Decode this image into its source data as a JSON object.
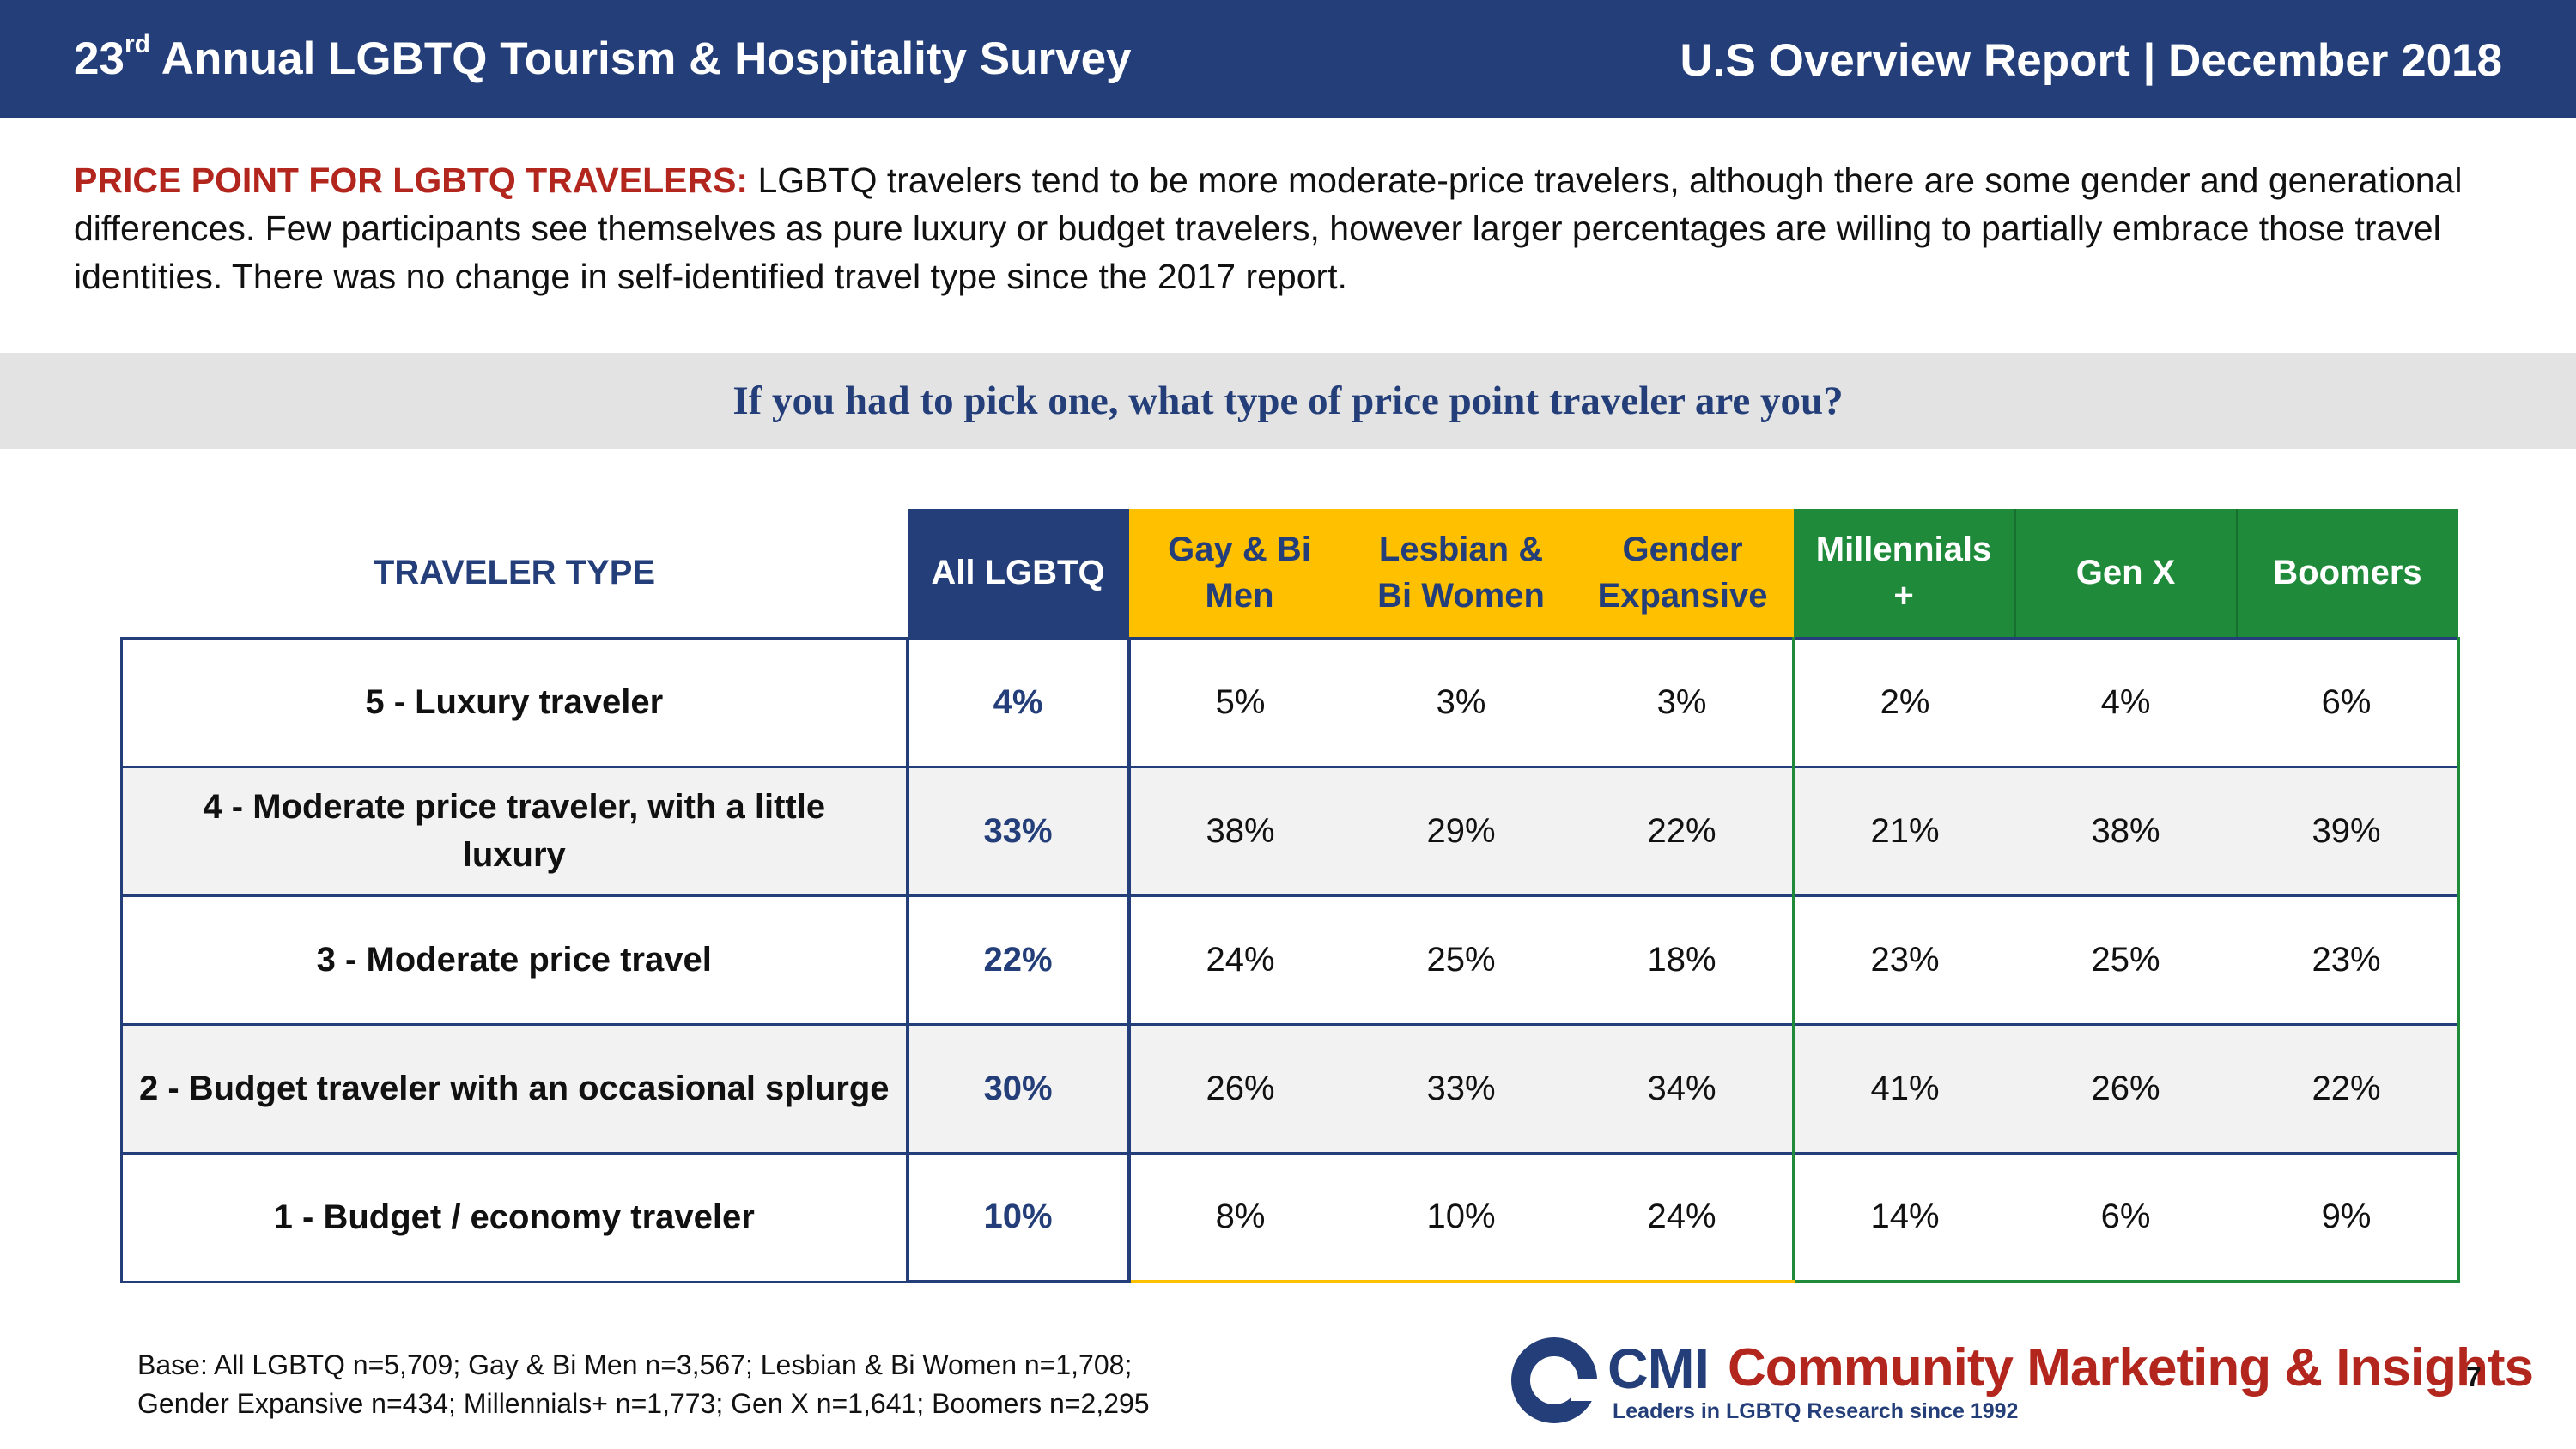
{
  "header": {
    "title_prefix": "23",
    "title_sup": "rd",
    "title_rest": " Annual LGBTQ Tourism & Hospitality Survey",
    "report": "U.S Overview Report | December 2018"
  },
  "intro": {
    "lead": "PRICE POINT FOR LGBTQ TRAVELERS:",
    "body": " LGBTQ travelers tend to be more moderate-price travelers, although there are some gender and generational differences.  Few participants see themselves as pure luxury or budget travelers, however larger percentages are willing to partially embrace those travel identities. There was no change in self-identified travel type since the 2017 report."
  },
  "question": "If you had to pick one, what type of price point traveler are you?",
  "table": {
    "headers": {
      "type": "TRAVELER TYPE",
      "all": "All LGBTQ",
      "gay_bi_men_1": "Gay & Bi",
      "gay_bi_men_2": "Men",
      "lesbian_bi_women_1": "Lesbian &",
      "lesbian_bi_women_2": "Bi Women",
      "gender_expansive_1": "Gender",
      "gender_expansive_2": "Expansive",
      "millennials_1": "Millennials",
      "millennials_2": "+",
      "genx": "Gen X",
      "boomers": "Boomers"
    },
    "rows": [
      {
        "type": "5 - Luxury traveler",
        "type2": "",
        "all": "4%",
        "gay_bi_men": "5%",
        "lesbian_bi_women": "3%",
        "gender_expansive": "3%",
        "millennials": "2%",
        "genx": "4%",
        "boomers": "6%"
      },
      {
        "type": "4 - Moderate price traveler, with a little",
        "type2": "luxury",
        "all": "33%",
        "gay_bi_men": "38%",
        "lesbian_bi_women": "29%",
        "gender_expansive": "22%",
        "millennials": "21%",
        "genx": "38%",
        "boomers": "39%"
      },
      {
        "type": "3 - Moderate price travel",
        "type2": "",
        "all": "22%",
        "gay_bi_men": "24%",
        "lesbian_bi_women": "25%",
        "gender_expansive": "18%",
        "millennials": "23%",
        "genx": "25%",
        "boomers": "23%"
      },
      {
        "type": "2 - Budget traveler with an occasional splurge",
        "type2": "",
        "all": "30%",
        "gay_bi_men": "26%",
        "lesbian_bi_women": "33%",
        "gender_expansive": "34%",
        "millennials": "41%",
        "genx": "26%",
        "boomers": "22%"
      },
      {
        "type": "1 - Budget / economy traveler",
        "type2": "",
        "all": "10%",
        "gay_bi_men": "8%",
        "lesbian_bi_women": "10%",
        "gender_expansive": "24%",
        "millennials": "14%",
        "genx": "6%",
        "boomers": "9%"
      }
    ]
  },
  "footer": {
    "base_line1": "Base: All LGBTQ n=5,709; Gay & Bi Men n=3,567; Lesbian & Bi Women n=1,708;",
    "base_line2": "Gender Expansive n=434; Millennials+ n=1,773; Gen X n=1,641; Boomers n=2,295",
    "logo_cmi": "CMI",
    "logo_name": "Community Marketing & Insights",
    "logo_tagline": "Leaders in LGBTQ Research since 1992",
    "page_number": "7"
  },
  "colors": {
    "navy": "#233e78",
    "gold": "#ffc000",
    "green": "#1e8a3a",
    "red": "#b3261e",
    "banner_gray": "#e3e3e3"
  }
}
